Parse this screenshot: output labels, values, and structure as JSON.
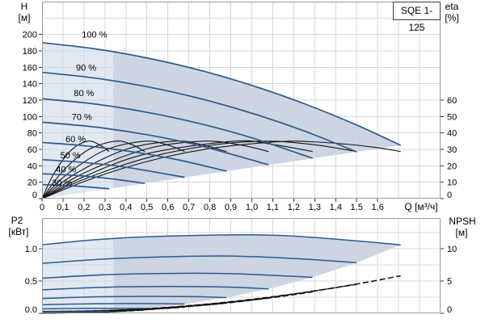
{
  "title_box": {
    "label": "SQE 1-125"
  },
  "colors": {
    "curve_blue": "#2d5a8c",
    "eta_black": "#141414",
    "envelope_light": "#e0e8f3",
    "envelope_dark": "#cbd5e4",
    "grid": "#d7d7d7",
    "frame": "#9a9a9a",
    "text": "#000000"
  },
  "axes": {
    "h": {
      "title": "H",
      "unit": "[м]"
    },
    "eta": {
      "title": "eta",
      "unit": "[%]"
    },
    "q": {
      "title": "Q [м³/ч]"
    },
    "p2": {
      "title": "P2",
      "unit": "[кВт]"
    },
    "npsh": {
      "title": "NPSH",
      "unit": "[м]"
    }
  },
  "chart_data": [
    {
      "id": "qh_eta",
      "type": "line",
      "title": "SQE 1-125",
      "xlabel": "Q [м³/ч]",
      "ylabel_left": "H [м]",
      "ylabel_right": "eta [%]",
      "xlim": [
        0,
        1.9
      ],
      "ylim_left": [
        0,
        240
      ],
      "ylim_right": [
        0,
        120
      ],
      "grid_x_step": 0.1,
      "grid_y_step": 20,
      "x_ticks": [
        [
          0,
          "0"
        ],
        [
          0.1,
          "0,1"
        ],
        [
          0.2,
          "0,2"
        ],
        [
          0.3,
          "0,3"
        ],
        [
          0.4,
          "0,4"
        ],
        [
          0.5,
          "0,5"
        ],
        [
          0.6,
          "0,6"
        ],
        [
          0.7,
          "0,7"
        ],
        [
          0.8,
          "0,8"
        ],
        [
          0.9,
          "0,9"
        ],
        [
          1.0,
          "1,0"
        ],
        [
          1.1,
          "1,1"
        ],
        [
          1.2,
          "1,2"
        ],
        [
          1.3,
          "1,3"
        ],
        [
          1.4,
          "1,4"
        ],
        [
          1.5,
          "1,5"
        ],
        [
          1.6,
          "1,6"
        ]
      ],
      "y_ticks_left": [
        [
          0,
          "0"
        ],
        [
          20,
          "20"
        ],
        [
          40,
          "40"
        ],
        [
          60,
          "60"
        ],
        [
          80,
          "80"
        ],
        [
          100,
          "100"
        ],
        [
          120,
          "120"
        ],
        [
          140,
          "140"
        ],
        [
          160,
          "160"
        ],
        [
          180,
          "180"
        ],
        [
          200,
          "200"
        ]
      ],
      "y_ticks_right": [
        [
          0,
          "0"
        ],
        [
          10,
          "10"
        ],
        [
          20,
          "20"
        ],
        [
          30,
          "30"
        ],
        [
          40,
          "40"
        ],
        [
          50,
          "50"
        ],
        [
          60,
          "60"
        ]
      ],
      "operating_band_from_q": 0.34,
      "envelope": {
        "lower": [
          [
            0,
            0
          ],
          [
            1.71,
            65
          ]
        ],
        "upper_series": "100 %"
      },
      "qh_series": [
        {
          "name": "100 %",
          "label_pos": [
            0.25,
            200
          ],
          "points": [
            [
              0,
              190
            ],
            [
              0.25,
              182.6
            ],
            [
              0.5,
              171.4
            ],
            [
              0.75,
              156.6
            ],
            [
              1.0,
              138
            ],
            [
              1.25,
              115.7
            ],
            [
              1.5,
              89.7
            ],
            [
              1.71,
              65
            ]
          ]
        },
        {
          "name": "90 %",
          "label_pos": [
            0.21,
            160
          ],
          "points": [
            [
              0,
              153.9
            ],
            [
              0.25,
              147
            ],
            [
              0.5,
              136.4
            ],
            [
              0.75,
              122.1
            ],
            [
              1.0,
              104.1
            ],
            [
              1.25,
              82.4
            ],
            [
              1.5,
              57
            ]
          ]
        },
        {
          "name": "80 %",
          "label_pos": [
            0.2,
            129
          ],
          "points": [
            [
              0,
              121.6
            ],
            [
              0.25,
              115.3
            ],
            [
              0.5,
              105.2
            ],
            [
              0.75,
              91.5
            ],
            [
              1.0,
              74.1
            ],
            [
              1.29,
              49.2
            ]
          ]
        },
        {
          "name": "70 %",
          "label_pos": [
            0.19,
            100
          ],
          "points": [
            [
              0,
              93.1
            ],
            [
              0.25,
              87.3
            ],
            [
              0.5,
              77.9
            ],
            [
              0.75,
              64.7
            ],
            [
              1.08,
              41.3
            ]
          ]
        },
        {
          "name": "60 %",
          "label_pos": [
            0.16,
            73
          ],
          "points": [
            [
              0,
              68.4
            ],
            [
              0.2,
              64.5
            ],
            [
              0.45,
              56.4
            ],
            [
              0.65,
              47.2
            ],
            [
              0.88,
              33.5
            ]
          ]
        },
        {
          "name": "50 %",
          "label_pos": [
            0.135,
            53
          ],
          "points": [
            [
              0,
              47.5
            ],
            [
              0.2,
              44.1
            ],
            [
              0.4,
              38.3
            ],
            [
              0.68,
              26
            ]
          ]
        },
        {
          "name": "40 %",
          "label_pos": [
            0.115,
            36
          ],
          "points": [
            [
              0,
              30.4
            ],
            [
              0.15,
              28.4
            ],
            [
              0.3,
              25.1
            ],
            [
              0.49,
              18.7
            ]
          ]
        },
        {
          "name": "30 %",
          "label_pos": [
            0.095,
            19.5
          ],
          "points": [
            [
              0,
              17.1
            ],
            [
              0.1,
              16.1
            ],
            [
              0.2,
              14.6
            ],
            [
              0.32,
              12
            ]
          ]
        }
      ],
      "eta_series": [
        {
          "name": "eta 100 %",
          "points": [
            [
              0,
              0
            ],
            [
              0.2,
              10.4
            ],
            [
              0.4,
              19
            ],
            [
              0.6,
              25.7
            ],
            [
              0.8,
              30.5
            ],
            [
              1.0,
              33.4
            ],
            [
              1.21,
              35
            ],
            [
              1.45,
              33.2
            ],
            [
              1.6,
              31
            ],
            [
              1.71,
              28.7
            ]
          ]
        },
        {
          "name": "eta 90 %",
          "points": [
            [
              0,
              0
            ],
            [
              0.2,
              11.8
            ],
            [
              0.5,
              24.8
            ],
            [
              0.8,
              32.4
            ],
            [
              1.07,
              35
            ],
            [
              1.3,
              32.8
            ],
            [
              1.5,
              28.7
            ]
          ]
        },
        {
          "name": "eta 80 %",
          "points": [
            [
              0,
              0
            ],
            [
              0.2,
              13.4
            ],
            [
              0.5,
              27.4
            ],
            [
              0.92,
              35
            ],
            [
              1.1,
              33
            ],
            [
              1.29,
              28.7
            ]
          ]
        },
        {
          "name": "eta 70 %",
          "points": [
            [
              0,
              0
            ],
            [
              0.2,
              15.6
            ],
            [
              0.5,
              30.3
            ],
            [
              0.77,
              35
            ],
            [
              0.95,
              32.6
            ],
            [
              1.08,
              28.7
            ]
          ]
        },
        {
          "name": "eta 60 %",
          "points": [
            [
              0,
              0
            ],
            [
              0.15,
              14.5
            ],
            [
              0.4,
              30
            ],
            [
              0.63,
              35
            ],
            [
              0.75,
              33.2
            ],
            [
              0.88,
              28.7
            ]
          ]
        },
        {
          "name": "eta 50 %",
          "points": [
            [
              0,
              0
            ],
            [
              0.12,
              14.9
            ],
            [
              0.3,
              29.5
            ],
            [
              0.49,
              35
            ],
            [
              0.6,
              32.6
            ],
            [
              0.68,
              28.7
            ]
          ]
        },
        {
          "name": "eta 40 %",
          "points": [
            [
              0,
              0
            ],
            [
              0.1,
              16.9
            ],
            [
              0.22,
              29.7
            ],
            [
              0.35,
              35
            ],
            [
              0.43,
              32.8
            ],
            [
              0.49,
              28.7
            ]
          ]
        },
        {
          "name": "eta 30 %",
          "points": [
            [
              0,
              0
            ],
            [
              0.06,
              16
            ],
            [
              0.14,
              29.6
            ],
            [
              0.22,
              35
            ],
            [
              0.28,
              32.3
            ],
            [
              0.32,
              28.7
            ]
          ]
        }
      ]
    },
    {
      "id": "p2_npsh",
      "type": "line",
      "xlabel": "Q [м³/ч]",
      "ylabel_left": "P2 [кВт]",
      "ylabel_right": "NPSH [м]",
      "xlim": [
        0,
        1.9
      ],
      "ylim_left": [
        0,
        1.475
      ],
      "ylim_right": [
        0,
        14.75
      ],
      "grid_x_step": 0.1,
      "grid_y_step": 0.25,
      "y_ticks_left": [
        [
          0,
          "0.0"
        ],
        [
          0.5,
          "0.5"
        ],
        [
          1.0,
          "1.0"
        ]
      ],
      "y_ticks_right": [
        [
          0,
          "0"
        ],
        [
          5,
          "5"
        ],
        [
          10,
          "10"
        ]
      ],
      "operating_band_from_q": 0.34,
      "envelope": {
        "lower": [
          [
            0,
            0
          ],
          [
            0.32,
            0.033
          ],
          [
            0.49,
            0.076
          ],
          [
            0.68,
            0.143
          ],
          [
            0.88,
            0.244
          ],
          [
            1.08,
            0.377
          ],
          [
            1.29,
            0.558
          ],
          [
            1.5,
            0.784
          ],
          [
            1.71,
            1.06
          ]
        ],
        "upper_series": "100 %"
      },
      "p2_series": [
        {
          "name": "100 %",
          "points": [
            [
              0,
              1.06
            ],
            [
              0.2,
              1.125
            ],
            [
              0.4,
              1.17
            ],
            [
              0.6,
              1.195
            ],
            [
              0.8,
              1.21
            ],
            [
              1.0,
              1.215
            ],
            [
              1.2,
              1.195
            ],
            [
              1.45,
              1.135
            ],
            [
              1.71,
              1.06
            ]
          ]
        },
        {
          "name": "90 %",
          "points": [
            [
              0,
              0.773
            ],
            [
              0.3,
              0.841
            ],
            [
              0.6,
              0.875
            ],
            [
              0.9,
              0.886
            ],
            [
              1.2,
              0.849
            ],
            [
              1.5,
              0.784
            ]
          ]
        },
        {
          "name": "80 %",
          "points": [
            [
              0,
              0.543
            ],
            [
              0.3,
              0.597
            ],
            [
              0.6,
              0.617
            ],
            [
              0.9,
              0.614
            ],
            [
              1.29,
              0.558
            ]
          ]
        },
        {
          "name": "70 %",
          "points": [
            [
              0,
              0.364
            ],
            [
              0.3,
              0.403
            ],
            [
              0.6,
              0.415
            ],
            [
              0.9,
              0.405
            ],
            [
              1.08,
              0.377
            ]
          ]
        },
        {
          "name": "60 %",
          "points": [
            [
              0,
              0.229
            ],
            [
              0.25,
              0.255
            ],
            [
              0.5,
              0.261
            ],
            [
              0.7,
              0.259
            ],
            [
              0.88,
              0.244
            ]
          ]
        },
        {
          "name": "50 %",
          "points": [
            [
              0,
              0.133
            ],
            [
              0.2,
              0.146
            ],
            [
              0.4,
              0.151
            ],
            [
              0.55,
              0.15
            ],
            [
              0.68,
              0.143
            ]
          ]
        },
        {
          "name": "40 %",
          "points": [
            [
              0,
              0.068
            ],
            [
              0.15,
              0.075
            ],
            [
              0.3,
              0.077
            ],
            [
              0.49,
              0.076
            ]
          ]
        },
        {
          "name": "30 %",
          "points": [
            [
              0,
              0.029
            ],
            [
              0.1,
              0.031
            ],
            [
              0.2,
              0.033
            ],
            [
              0.32,
              0.033
            ]
          ]
        }
      ],
      "npsh_series": [
        {
          "name": "NPSH 100 %",
          "points": [
            [
              0,
              0.25
            ],
            [
              0.4,
              0.55
            ],
            [
              0.8,
              1.47
            ],
            [
              1.2,
              2.99
            ],
            [
              1.5,
              4.53
            ],
            [
              1.71,
              5.81
            ]
          ]
        },
        {
          "name": "NPSH 90 %",
          "points": [
            [
              0,
              0.2
            ],
            [
              0.5,
              0.68
            ],
            [
              1.0,
              2.1
            ],
            [
              1.5,
              4.48
            ]
          ]
        },
        {
          "name": "NPSH 80 %",
          "points": [
            [
              0,
              0.16
            ],
            [
              0.5,
              0.64
            ],
            [
              1.0,
              2.06
            ],
            [
              1.29,
              3.32
            ]
          ]
        },
        {
          "name": "NPSH 70 %",
          "points": [
            [
              0,
              0.12
            ],
            [
              0.4,
              0.43
            ],
            [
              0.8,
              1.34
            ],
            [
              1.08,
              2.36
            ]
          ]
        },
        {
          "name": "NPSH 60 %",
          "points": [
            [
              0,
              0.09
            ],
            [
              0.4,
              0.39
            ],
            [
              0.88,
              1.57
            ]
          ]
        },
        {
          "name": "NPSH 50 %",
          "points": [
            [
              0,
              0.06
            ],
            [
              0.3,
              0.23
            ],
            [
              0.68,
              0.95
            ]
          ]
        },
        {
          "name": "NPSH 40 %",
          "points": [
            [
              0,
              0.04
            ],
            [
              0.25,
              0.16
            ],
            [
              0.49,
              0.5
            ]
          ]
        },
        {
          "name": "NPSH 30 %",
          "points": [
            [
              0,
              0.02
            ],
            [
              0.32,
              0.21
            ]
          ]
        }
      ]
    }
  ]
}
